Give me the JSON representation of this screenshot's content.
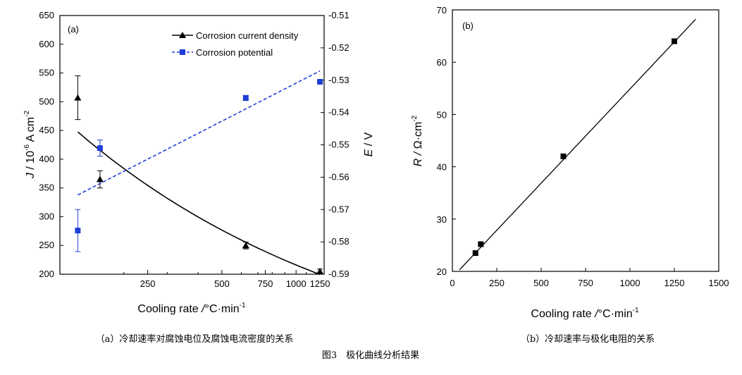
{
  "figure_caption": "图3　极化曲线分析结果",
  "chart_data": [
    {
      "type": "line",
      "panel_label": "(a)",
      "caption": "（a）冷却速率对腐蚀电位及腐蚀电流密度的关系",
      "xlabel": "Cooling rate / °C·min⁻¹",
      "xlabel_parts": {
        "main": "Cooling rate",
        "slash": "/",
        "unit": "°C·min",
        "sup": "-1"
      },
      "xscale": "log",
      "xlim": [
        110,
        1300
      ],
      "xticks": [
        250,
        500,
        750,
        1000,
        1250
      ],
      "ylabel_left_parts": {
        "j": "J",
        "slash": "/",
        "pre": "10",
        "sup1": "-6",
        "mid": " A cm",
        "sup2": "-2"
      },
      "ylabel_right_parts": {
        "e": "E",
        "slash": "/",
        "unit": "V"
      },
      "ylim_left": [
        200,
        650
      ],
      "yticks_left": [
        200,
        250,
        300,
        350,
        400,
        450,
        500,
        550,
        600,
        650
      ],
      "ylim_right": [
        -0.59,
        -0.51
      ],
      "yticks_right": [
        -0.59,
        -0.58,
        -0.57,
        -0.56,
        -0.55,
        -0.54,
        -0.53,
        -0.52,
        -0.51
      ],
      "ytick_labels_right": [
        "-0.59",
        "-0.58",
        "-0.57",
        "-0.56",
        "-0.55",
        "-0.54",
        "-0.53",
        "-0.52",
        "-0.51"
      ],
      "legend_position": "top-right",
      "series": [
        {
          "name": "Corrosion current density",
          "axis": "left",
          "color": "#000000",
          "marker": "triangle",
          "line_style": "solid",
          "x": [
            130,
            160,
            625,
            1250
          ],
          "y": [
            507,
            365,
            250,
            205
          ],
          "err": [
            38,
            15,
            6,
            4
          ]
        },
        {
          "name": "Corrosion potential",
          "axis": "right",
          "color": "#1f3fd6",
          "marker": "square",
          "line_style": "dashed",
          "x": [
            130,
            160,
            625,
            1250
          ],
          "y": [
            -0.5765,
            -0.551,
            -0.5355,
            -0.5305
          ],
          "err": [
            0.0065,
            0.0025,
            0.0008,
            0.0005
          ]
        }
      ]
    },
    {
      "type": "scatter",
      "panel_label": "(b)",
      "caption": "（b）冷却速率与极化电阻的关系",
      "xlabel_parts": {
        "main": "Cooling rate",
        "slash": "/",
        "unit": "°C·min",
        "sup": "-1"
      },
      "ylabel_parts": {
        "r": "R",
        "slash": "/",
        "unit": "Ω·cm",
        "sup": "-2"
      },
      "xlim": [
        0,
        1500
      ],
      "xticks": [
        0,
        250,
        500,
        750,
        1000,
        1250,
        1500
      ],
      "ylim": [
        20,
        70
      ],
      "yticks": [
        20,
        30,
        40,
        50,
        60,
        70
      ],
      "points": [
        {
          "x": 130,
          "y": 23.5
        },
        {
          "x": 160,
          "y": 25.2
        },
        {
          "x": 625,
          "y": 42
        },
        {
          "x": 1250,
          "y": 64
        }
      ],
      "fit_line": {
        "x": [
          40,
          1370
        ],
        "y": [
          20.3,
          68.2
        ]
      }
    }
  ]
}
